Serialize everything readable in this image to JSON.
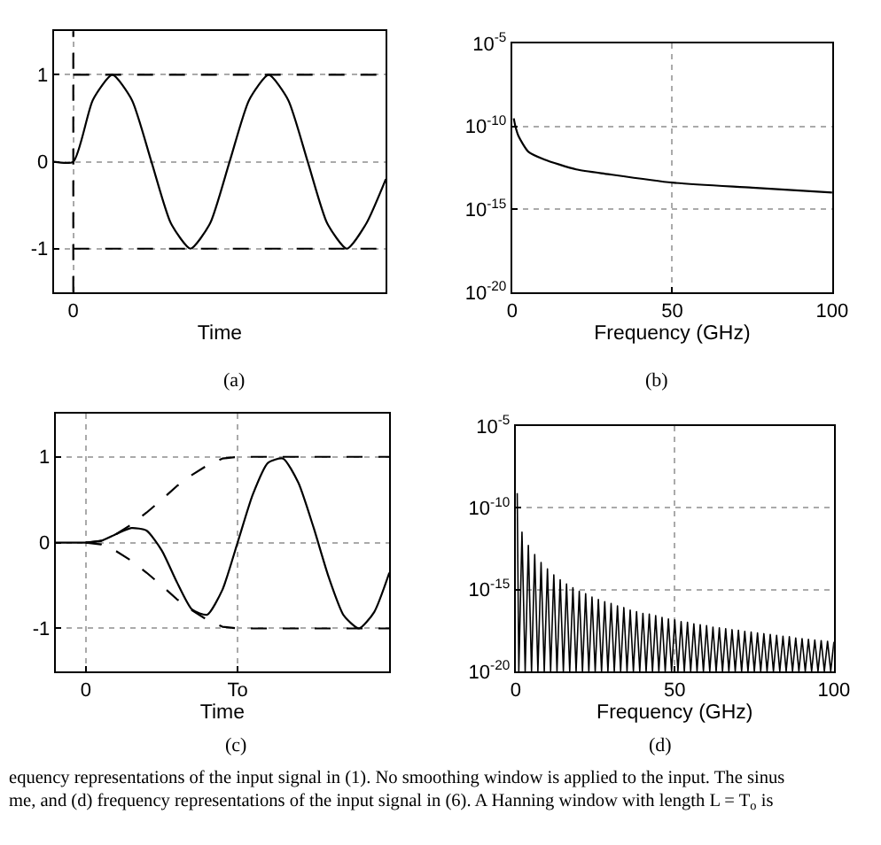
{
  "chart_data": [
    {
      "type": "line",
      "xlabel": "Time",
      "categories": [
        null,
        "0",
        null,
        null,
        null,
        null,
        null,
        null,
        null,
        null,
        null,
        null,
        null,
        null,
        null,
        null,
        null,
        null
      ],
      "ylim": [
        -1.5,
        1.5
      ],
      "yticks": [
        {
          "value": -1,
          "label": "-1"
        },
        0,
        1
      ],
      "grid": true,
      "annotations": [
        "(a)"
      ],
      "ref_lines": [
        {
          "axis": "x",
          "value": "0",
          "line_style": "dashed",
          "color": "#000000"
        }
      ],
      "series": [
        {
          "color": "#000000",
          "line_style": "solid",
          "values": [
            0,
            0,
            0.71,
            1,
            0.71,
            0,
            -0.71,
            -1,
            -0.71,
            0,
            0.71,
            1,
            0.71,
            0,
            -0.71,
            -1,
            -0.71,
            -0.2
          ]
        },
        {
          "color": "#000000",
          "line_style": "dashed",
          "values": [
            null,
            1,
            1,
            1,
            1,
            1,
            1,
            1,
            1,
            1,
            1,
            1,
            1,
            1,
            1,
            1,
            1,
            1
          ]
        },
        {
          "color": "#000000",
          "line_style": "dashed",
          "values": [
            null,
            -1,
            -1,
            -1,
            -1,
            -1,
            -1,
            -1,
            -1,
            -1,
            -1,
            -1,
            -1,
            -1,
            -1,
            -1,
            -1,
            -1
          ]
        }
      ]
    },
    {
      "type": "line",
      "xlabel": "Frequency (GHz)",
      "xlim": [
        0,
        100
      ],
      "xticks": [
        0,
        50,
        100
      ],
      "ylim": [
        1e-20,
        1e-05
      ],
      "yticks": [
        {
          "value": 1e-20,
          "label": "10$^{-20}$"
        },
        {
          "value": 1e-15,
          "label": "10$^{-15}$"
        },
        {
          "value": 1e-10,
          "label": "10$^{-10}$"
        },
        {
          "value": 1e-05,
          "label": "10$^{-5}$"
        }
      ],
      "log": true,
      "grid": true,
      "annotations": [
        "(b)"
      ],
      "series": [
        {
          "color": "#000000",
          "line_style": "solid",
          "x": [
            0.5,
            1,
            2,
            5,
            10,
            20,
            30,
            50,
            75,
            100
          ],
          "values": [
            3e-10,
            1e-10,
            2.5e-11,
            3e-12,
            1e-12,
            2.5e-13,
            1.3e-13,
            4e-14,
            2e-14,
            1e-14
          ]
        }
      ]
    },
    {
      "type": "line",
      "xlabel": "Time",
      "categories": [
        null,
        null,
        "0",
        null,
        null,
        null,
        null,
        null,
        null,
        null,
        null,
        null,
        "To",
        null,
        null,
        null,
        null,
        null,
        null,
        null,
        null,
        null,
        null
      ],
      "ylim": [
        -1.5,
        1.5
      ],
      "yticks": [
        {
          "value": -1,
          "label": "-1"
        },
        0,
        1
      ],
      "grid": true,
      "annotations": [
        "(c)"
      ],
      "series": [
        {
          "color": "#000000",
          "line_style": "solid",
          "values": [
            0,
            0,
            0,
            0.02,
            0.1,
            0.17,
            0.14,
            -0.09,
            -0.46,
            -0.78,
            -0.84,
            -0.55,
            0,
            0.56,
            0.93,
            0.98,
            0.7,
            0.18,
            -0.4,
            -0.85,
            -1,
            -0.81,
            -0.35
          ]
        },
        {
          "color": "#000000",
          "line_style": "dashed",
          "values": [
            null,
            null,
            0,
            0.02,
            0.1,
            0.21,
            0.35,
            0.5,
            0.66,
            0.79,
            0.9,
            0.98,
            1,
            1,
            1,
            1,
            1,
            1,
            1,
            1,
            1,
            1,
            1
          ]
        },
        {
          "color": "#000000",
          "line_style": "dashed",
          "values": [
            null,
            null,
            0,
            -0.02,
            -0.1,
            -0.21,
            -0.35,
            -0.5,
            -0.66,
            -0.79,
            -0.9,
            -0.98,
            -1,
            -1,
            -1,
            -1,
            -1,
            -1,
            -1,
            -1,
            -1,
            -1,
            -1
          ]
        }
      ]
    },
    {
      "type": "line",
      "xlabel": "Frequency (GHz)",
      "xlim": [
        0,
        100
      ],
      "xticks": [
        0,
        50,
        100
      ],
      "ylim": [
        1e-20,
        1e-05
      ],
      "yticks": [
        {
          "value": 1e-20,
          "label": "10$^{-20}$"
        },
        {
          "value": 1e-15,
          "label": "10$^{-15}$"
        },
        {
          "value": 1e-10,
          "label": "10$^{-10}$"
        },
        {
          "value": 1e-05,
          "label": "10$^{-5}$"
        }
      ],
      "log": true,
      "grid": true,
      "annotations": [
        "(d)",
        "equency representations of the input signal in (1). No smoothing window is applied to the input. The sinus",
        "me, and (d) frequency representations of the input signal in (6). A Hanning window with length L = T$_{o}$ is"
      ],
      "series": [
        {
          "color": "#000000",
          "line_style": "solid",
          "x": [
            0.5,
            1,
            2,
            3,
            4,
            5,
            6,
            7,
            8,
            9,
            10,
            11,
            12,
            13,
            14,
            15,
            16,
            17,
            18,
            19,
            20,
            21,
            22,
            23,
            24,
            25,
            26,
            27,
            28,
            29,
            30,
            31,
            32,
            33,
            34,
            35,
            36,
            37,
            38,
            39,
            40,
            41,
            42,
            43,
            44,
            45,
            46,
            47,
            48,
            49,
            50,
            51,
            52,
            53,
            54,
            55,
            56,
            57,
            58,
            59,
            60,
            61,
            62,
            63,
            64,
            65,
            66,
            67,
            68,
            69,
            70,
            71,
            72,
            73,
            74,
            75,
            76,
            77,
            78,
            79,
            80,
            81,
            82,
            83,
            84,
            85,
            86,
            87,
            88,
            89,
            90,
            91,
            92,
            93,
            94,
            95,
            96,
            97,
            98,
            99,
            100
          ],
          "values": [
            7.9e-10,
            1e-20,
            3.2e-12,
            1e-20,
            5e-13,
            1e-20,
            1.4e-13,
            1e-20,
            4.5e-14,
            1e-20,
            1.8e-14,
            1e-20,
            7.9e-15,
            1e-20,
            4e-15,
            1e-20,
            2.2e-15,
            1e-20,
            1.3e-15,
            1e-20,
            7.9e-16,
            1e-20,
            5.6e-16,
            1e-20,
            3.5e-16,
            1e-20,
            2.5e-16,
            1e-20,
            1.8e-16,
            1e-20,
            1.4e-16,
            1e-20,
            1e-16,
            1e-20,
            7.9e-17,
            1e-20,
            5.6e-17,
            1e-20,
            4.5e-17,
            1e-20,
            3.5e-17,
            1e-20,
            3.2e-17,
            1e-20,
            2.5e-17,
            1e-20,
            2e-17,
            1e-20,
            1.6e-17,
            1e-20,
            1.4e-17,
            1e-20,
            1.1e-17,
            1e-20,
            1e-17,
            1e-20,
            7.9e-18,
            1e-20,
            7.1e-18,
            1e-20,
            6.3e-18,
            1e-20,
            5e-18,
            1e-20,
            4.5e-18,
            1e-20,
            4e-18,
            1e-20,
            3.5e-18,
            1e-20,
            3.2e-18,
            1e-20,
            2.8e-18,
            1e-20,
            2.5e-18,
            1e-20,
            2.2e-18,
            1e-20,
            2e-18,
            1e-20,
            1.8e-18,
            1e-20,
            1.6e-18,
            1e-20,
            1.4e-18,
            1e-20,
            1.3e-18,
            1e-20,
            1.1e-18,
            1e-20,
            1e-18,
            1e-20,
            9.1e-19,
            1e-20,
            8.3e-19,
            1e-20,
            7.6e-19,
            1e-20,
            6.9e-19,
            1e-20,
            6.3e-19
          ]
        }
      ]
    }
  ]
}
